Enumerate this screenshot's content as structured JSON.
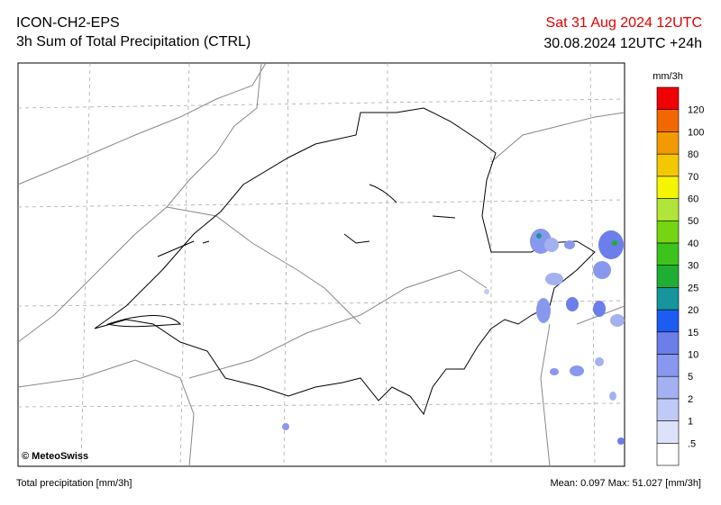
{
  "header": {
    "model": "ICON-CH2-EPS",
    "product": "3h Sum of Total Precipitation (CTRL)",
    "valid_time": "Sat 31 Aug 2024 12UTC",
    "run_time": "30.08.2024 12UTC +24h"
  },
  "map": {
    "credit": "© MeteoSwiss"
  },
  "legend": {
    "unit": "mm/3h",
    "labels": [
      ".5",
      "1",
      "2",
      "5",
      "10",
      "15",
      "20",
      "25",
      "30",
      "40",
      "50",
      "60",
      "70",
      "80",
      "100",
      "120"
    ],
    "colors": [
      "#ffffff",
      "#dde2fa",
      "#c0caf6",
      "#a3b1f1",
      "#8898ee",
      "#6c7ee9",
      "#1c5cf0",
      "#16969c",
      "#1fae34",
      "#3cc41c",
      "#76d512",
      "#b2e53a",
      "#f5f500",
      "#f4c800",
      "#f39a00",
      "#f26800",
      "#f00000"
    ]
  },
  "footer": {
    "variable": "Total precipitation [mm/3h]",
    "stats": "Mean:  0.097 Max: 51.027 [mm/3h]"
  }
}
